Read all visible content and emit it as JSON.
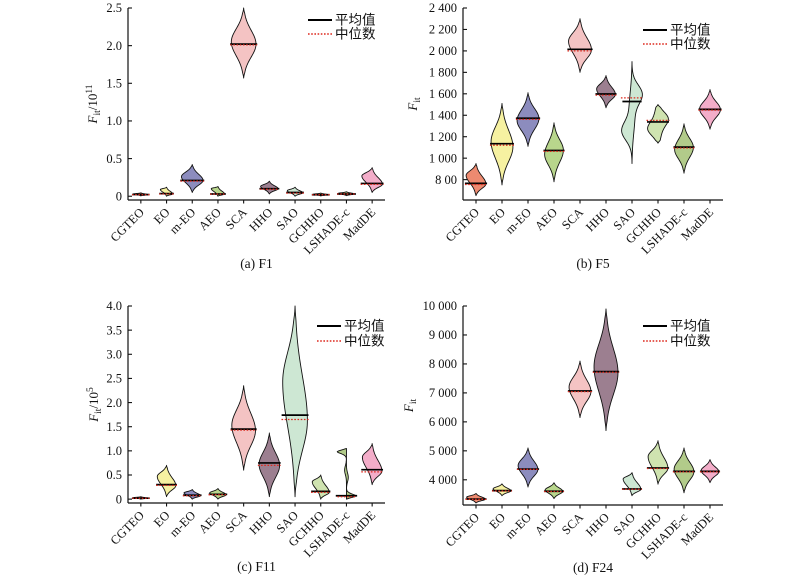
{
  "figure": {
    "legend": {
      "mean_label": "平均值",
      "median_label": "中位数"
    },
    "mean_color": "#000000",
    "median_color": "#dd2a1e",
    "categories": [
      "CGTEO",
      "EO",
      "m-EO",
      "AEO",
      "SCA",
      "HHO",
      "SAO",
      "GCHHO",
      "LSHADE-c",
      "MadDE"
    ],
    "colors": {
      "CGTEO": "#ed8a70",
      "EO": "#f6f1a1",
      "m-EO": "#8c8cbe",
      "AEO": "#b8d68c",
      "SCA": "#f4c3c3",
      "HHO": "#9c7f90",
      "SAO": "#cde7d3",
      "GCHHO": "#cfe3b0",
      "LSHADE-c": "#b2cb8a",
      "MadDE": "#f3adc9"
    }
  },
  "chart_data": [
    {
      "type": "violin",
      "caption": "(a) F1",
      "ylabel": "F_it/10^11",
      "ylabel_parts": {
        "base": "F",
        "sub": "it",
        "div": "/10",
        "sup": "11"
      },
      "ylim": [
        -0.05,
        2.5
      ],
      "ytick_values": [
        0,
        0.5,
        1.0,
        1.5,
        2.0,
        2.5
      ],
      "ytick_labels": [
        "0",
        "0.5",
        "1.0",
        "1.5",
        "2.0",
        "2.5"
      ],
      "legend_pos": "top-right",
      "series": [
        {
          "name": "CGTEO",
          "min": 0.005,
          "max": 0.045,
          "peak": 0.02,
          "mean": 0.022,
          "median": 0.02,
          "hw": 0.3
        },
        {
          "name": "EO",
          "min": 0.0,
          "max": 0.12,
          "peak": 0.03,
          "mean": 0.035,
          "median": 0.03,
          "hw": 0.24
        },
        {
          "name": "m-EO",
          "min": 0.05,
          "max": 0.42,
          "peak": 0.21,
          "mean": 0.21,
          "median": 0.2,
          "hw": 0.42
        },
        {
          "name": "AEO",
          "min": 0.0,
          "max": 0.13,
          "peak": 0.028,
          "mean": 0.03,
          "median": 0.028,
          "hw": 0.26
        },
        {
          "name": "SCA",
          "min": 1.57,
          "max": 2.5,
          "peak": 2.02,
          "mean": 2.02,
          "median": 2.01,
          "hw": 0.48
        },
        {
          "name": "HHO",
          "min": 0.03,
          "max": 0.2,
          "peak": 0.1,
          "mean": 0.1,
          "median": 0.092,
          "hw": 0.34
        },
        {
          "name": "SAO",
          "min": 0.0,
          "max": 0.12,
          "peak": 0.045,
          "mean": 0.05,
          "median": 0.042,
          "hw": 0.3
        },
        {
          "name": "GCHHO",
          "min": 0.004,
          "max": 0.042,
          "peak": 0.02,
          "mean": 0.02,
          "median": 0.019,
          "hw": 0.3
        },
        {
          "name": "LSHADE-c",
          "min": 0.008,
          "max": 0.06,
          "peak": 0.03,
          "mean": 0.03,
          "median": 0.029,
          "hw": 0.32
        },
        {
          "name": "MadDE",
          "min": 0.05,
          "max": 0.38,
          "peak": 0.16,
          "mean": 0.17,
          "median": 0.158,
          "hw": 0.4
        }
      ]
    },
    {
      "type": "violin",
      "caption": "(b) F5",
      "ylabel": "F_it",
      "ylabel_parts": {
        "base": "F",
        "sub": "it",
        "div": "",
        "sup": ""
      },
      "ylim": [
        610,
        2400
      ],
      "ytick_values": [
        800,
        1000,
        1200,
        1400,
        1600,
        1800,
        2000,
        2200,
        2400
      ],
      "ytick_labels": [
        "8 00",
        "1 000",
        "1 200",
        "1 400",
        "1 600",
        "1 800",
        "2 000",
        "2 200",
        "2 400"
      ],
      "legend_pos": "top-right",
      "series": [
        {
          "name": "CGTEO",
          "min": 650,
          "max": 950,
          "peak": 760,
          "mean": 765,
          "median": 755,
          "hw": 0.38
        },
        {
          "name": "EO",
          "min": 750,
          "max": 1510,
          "peak": 1105,
          "mean": 1135,
          "median": 1120,
          "hw": 0.42
        },
        {
          "name": "m-EO",
          "min": 1110,
          "max": 1610,
          "peak": 1370,
          "mean": 1372,
          "median": 1362,
          "hw": 0.42
        },
        {
          "name": "AEO",
          "min": 780,
          "max": 1330,
          "peak": 1075,
          "mean": 1072,
          "median": 1063,
          "hw": 0.36
        },
        {
          "name": "SCA",
          "min": 1800,
          "max": 2300,
          "peak": 2010,
          "mean": 2015,
          "median": 2000,
          "hw": 0.44
        },
        {
          "name": "HHO",
          "min": 1470,
          "max": 1770,
          "peak": 1595,
          "mean": 1598,
          "median": 1588,
          "hw": 0.36
        },
        {
          "name": "SAO",
          "min": 950,
          "max": 1900,
          "peak": 1595,
          "mean": 1528,
          "median": 1562,
          "hw": 0.4,
          "comps": [
            [
              1600,
              85,
              1.0
            ],
            [
              1400,
              170,
              0.32
            ]
          ]
        },
        {
          "name": "GCHHO",
          "min": 1140,
          "max": 1500,
          "peak": 1368,
          "mean": 1338,
          "median": 1352,
          "hw": 0.4,
          "comps": [
            [
              1372,
              62,
              1.0
            ],
            [
              1255,
              95,
              0.38
            ]
          ]
        },
        {
          "name": "LSHADE-c",
          "min": 860,
          "max": 1320,
          "peak": 1100,
          "mean": 1103,
          "median": 1095,
          "hw": 0.36
        },
        {
          "name": "MadDE",
          "min": 1270,
          "max": 1640,
          "peak": 1452,
          "mean": 1455,
          "median": 1448,
          "hw": 0.4
        }
      ]
    },
    {
      "type": "violin",
      "caption": "(c) F11",
      "ylabel": "F_it/10^5",
      "ylabel_parts": {
        "base": "F",
        "sub": "it",
        "div": "/10",
        "sup": "5"
      },
      "ylim": [
        -0.08,
        4.0
      ],
      "ytick_values": [
        0,
        0.5,
        1.0,
        1.5,
        2.0,
        2.5,
        3.0,
        3.5,
        4.0
      ],
      "ytick_labels": [
        "0",
        "0.5",
        "1.0",
        "1.5",
        "2.0",
        "2.5",
        "3.0",
        "3.5",
        "4.0"
      ],
      "legend_pos": "top-right",
      "series": [
        {
          "name": "CGTEO",
          "min": 0.0,
          "max": 0.05,
          "peak": 0.02,
          "mean": 0.02,
          "median": 0.018,
          "hw": 0.3
        },
        {
          "name": "EO",
          "min": 0.05,
          "max": 0.7,
          "peak": 0.28,
          "mean": 0.3,
          "median": 0.285,
          "hw": 0.36
        },
        {
          "name": "m-EO",
          "min": 0.0,
          "max": 0.2,
          "peak": 0.07,
          "mean": 0.08,
          "median": 0.07,
          "hw": 0.32
        },
        {
          "name": "AEO",
          "min": 0.0,
          "max": 0.22,
          "peak": 0.09,
          "mean": 0.1,
          "median": 0.09,
          "hw": 0.32
        },
        {
          "name": "SCA",
          "min": 0.6,
          "max": 2.35,
          "peak": 1.42,
          "mean": 1.45,
          "median": 1.43,
          "hw": 0.46
        },
        {
          "name": "HHO",
          "min": 0.05,
          "max": 1.37,
          "peak": 0.7,
          "mean": 0.75,
          "median": 0.7,
          "hw": 0.4
        },
        {
          "name": "SAO",
          "min": 0.05,
          "max": 4.0,
          "peak": 1.62,
          "mean": 1.74,
          "median": 1.65,
          "hw": 0.48
        },
        {
          "name": "GCHHO",
          "min": 0.0,
          "max": 0.5,
          "peak": 0.14,
          "mean": 0.16,
          "median": 0.14,
          "hw": 0.33
        },
        {
          "name": "LSHADE-c",
          "min": 0.0,
          "max": 1.05,
          "peak": 0.04,
          "mean": 0.07,
          "median": 0.05,
          "hw": 0.36,
          "comps": [
            [
              0.04,
              0.055,
              1.0
            ],
            [
              0.45,
              0.09,
              0.16
            ]
          ]
        },
        {
          "name": "MadDE",
          "min": 0.3,
          "max": 1.15,
          "peak": 0.58,
          "mean": 0.61,
          "median": 0.565,
          "hw": 0.38
        }
      ]
    },
    {
      "type": "violin",
      "caption": "(d) F24",
      "ylabel": "F_it",
      "ylabel_parts": {
        "base": "F",
        "sub": "it",
        "div": "",
        "sup": ""
      },
      "ylim": [
        3130,
        10000
      ],
      "ytick_values": [
        4000,
        5000,
        6000,
        7000,
        8000,
        9000,
        10000
      ],
      "ytick_labels": [
        "4 000",
        "5 000",
        "6 000",
        "7 000",
        "8 000",
        "9 000",
        "10 000"
      ],
      "legend_pos": "top-right",
      "series": [
        {
          "name": "CGTEO",
          "min": 3200,
          "max": 3530,
          "peak": 3330,
          "mean": 3335,
          "median": 3325,
          "hw": 0.36
        },
        {
          "name": "EO",
          "min": 3450,
          "max": 3860,
          "peak": 3620,
          "mean": 3625,
          "median": 3615,
          "hw": 0.34
        },
        {
          "name": "m-EO",
          "min": 3750,
          "max": 5100,
          "peak": 4360,
          "mean": 4370,
          "median": 4358,
          "hw": 0.38
        },
        {
          "name": "AEO",
          "min": 3350,
          "max": 3900,
          "peak": 3600,
          "mean": 3605,
          "median": 3595,
          "hw": 0.34
        },
        {
          "name": "SCA",
          "min": 6150,
          "max": 8100,
          "peak": 7050,
          "mean": 7065,
          "median": 7045,
          "hw": 0.42
        },
        {
          "name": "HHO",
          "min": 5700,
          "max": 9900,
          "peak": 7700,
          "mean": 7735,
          "median": 7715,
          "hw": 0.46
        },
        {
          "name": "SAO",
          "min": 3450,
          "max": 4250,
          "peak": 3670,
          "mean": 3685,
          "median": 3672,
          "hw": 0.34
        },
        {
          "name": "GCHHO",
          "min": 3850,
          "max": 5350,
          "peak": 4400,
          "mean": 4410,
          "median": 4388,
          "hw": 0.38
        },
        {
          "name": "LSHADE-c",
          "min": 3550,
          "max": 5100,
          "peak": 4280,
          "mean": 4290,
          "median": 4272,
          "hw": 0.38
        },
        {
          "name": "MadDE",
          "min": 3900,
          "max": 4700,
          "peak": 4280,
          "mean": 4290,
          "median": 4275,
          "hw": 0.34
        }
      ]
    }
  ]
}
